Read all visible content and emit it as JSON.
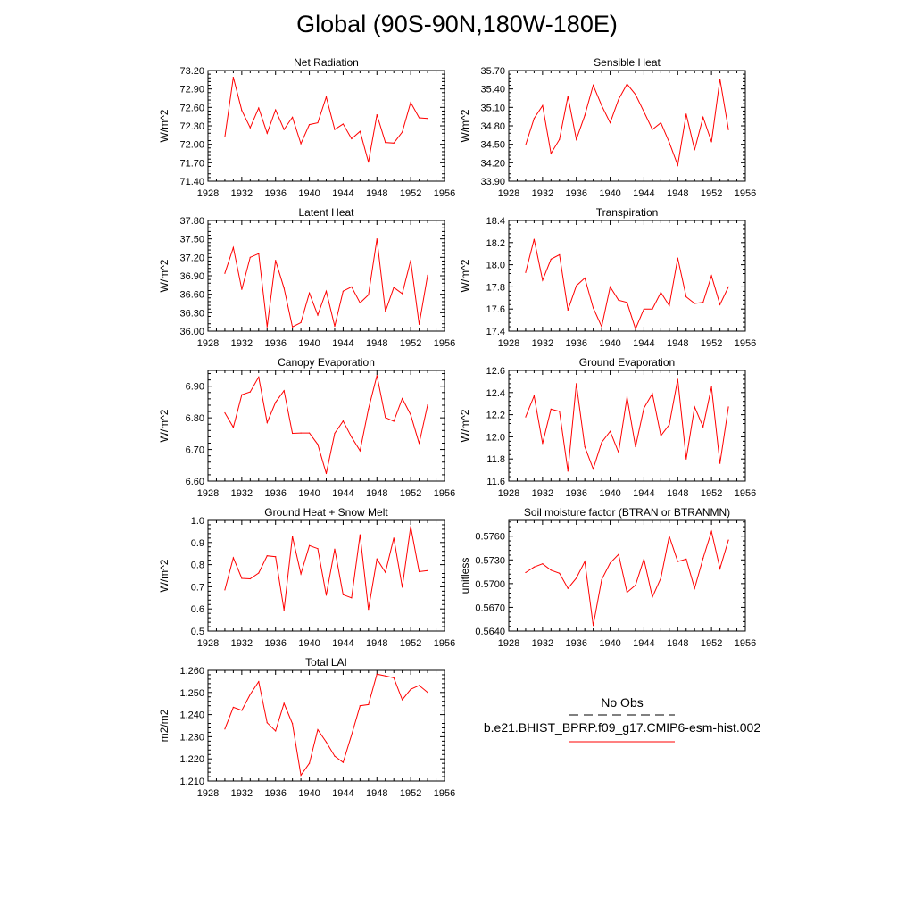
{
  "page": {
    "title": "Global (90S-90N,180W-180E)"
  },
  "colors": {
    "series": "#ff0000",
    "axis": "#000000",
    "obs_dash": "#000000"
  },
  "legend": {
    "obs_label": "No Obs",
    "model_label": "b.e21.BHIST_BPRP.f09_g17.CMIP6-esm-hist.002"
  },
  "chart_data": [
    {
      "type": "line",
      "title": "Net Radiation",
      "ylabel": "W/m^2",
      "xlim": [
        1928,
        1956
      ],
      "xticks": [
        1928,
        1932,
        1936,
        1940,
        1944,
        1948,
        1952,
        1956
      ],
      "ylim": [
        71.4,
        73.2
      ],
      "yticks": [
        "71.40",
        "71.70",
        "72.00",
        "72.30",
        "72.60",
        "72.90",
        "73.20"
      ],
      "x": [
        1930,
        1931,
        1932,
        1933,
        1934,
        1935,
        1936,
        1937,
        1938,
        1939,
        1940,
        1941,
        1942,
        1943,
        1944,
        1945,
        1946,
        1947,
        1948,
        1949,
        1950,
        1951,
        1952,
        1953,
        1954
      ],
      "series": [
        {
          "values": [
            72.12,
            73.09,
            72.55,
            72.27,
            72.59,
            72.18,
            72.56,
            72.24,
            72.44,
            72.01,
            72.32,
            72.35,
            72.77,
            72.24,
            72.33,
            72.09,
            72.21,
            71.71,
            72.48,
            72.03,
            72.02,
            72.2,
            72.68,
            72.43,
            72.42
          ]
        }
      ]
    },
    {
      "type": "line",
      "title": "Sensible Heat",
      "ylabel": "W/m^2",
      "xlim": [
        1928,
        1956
      ],
      "xticks": [
        1928,
        1932,
        1936,
        1940,
        1944,
        1948,
        1952,
        1956
      ],
      "ylim": [
        33.9,
        35.7
      ],
      "yticks": [
        "33.90",
        "34.20",
        "34.50",
        "34.80",
        "35.10",
        "35.40",
        "35.70"
      ],
      "x": [
        1930,
        1931,
        1932,
        1933,
        1934,
        1935,
        1936,
        1937,
        1938,
        1939,
        1940,
        1941,
        1942,
        1943,
        1944,
        1945,
        1946,
        1947,
        1948,
        1949,
        1950,
        1951,
        1952,
        1953,
        1954
      ],
      "series": [
        {
          "values": [
            34.49,
            34.92,
            35.13,
            34.35,
            34.58,
            35.28,
            34.58,
            34.97,
            35.46,
            35.13,
            34.85,
            35.23,
            35.48,
            35.31,
            35.03,
            34.74,
            34.85,
            34.53,
            34.16,
            34.99,
            34.41,
            34.94,
            34.54,
            35.56,
            34.74
          ]
        }
      ]
    },
    {
      "type": "line",
      "title": "Latent Heat",
      "ylabel": "W/m^2",
      "xlim": [
        1928,
        1956
      ],
      "xticks": [
        1928,
        1932,
        1936,
        1940,
        1944,
        1948,
        1952,
        1956
      ],
      "ylim": [
        36.0,
        37.8
      ],
      "yticks": [
        "36.00",
        "36.30",
        "36.60",
        "36.90",
        "37.20",
        "37.50",
        "37.80"
      ],
      "x": [
        1930,
        1931,
        1932,
        1933,
        1934,
        1935,
        1936,
        1937,
        1938,
        1939,
        1940,
        1941,
        1942,
        1943,
        1944,
        1945,
        1946,
        1947,
        1948,
        1949,
        1950,
        1951,
        1952,
        1953,
        1954
      ],
      "series": [
        {
          "values": [
            36.94,
            37.36,
            36.68,
            37.2,
            37.26,
            36.07,
            37.15,
            36.7,
            36.07,
            36.14,
            36.62,
            36.26,
            36.65,
            36.08,
            36.65,
            36.72,
            36.46,
            36.59,
            37.5,
            36.32,
            36.71,
            36.61,
            37.15,
            36.11,
            36.91
          ]
        }
      ]
    },
    {
      "type": "line",
      "title": "Transpiration",
      "ylabel": "W/m^2",
      "xlim": [
        1928,
        1956
      ],
      "xticks": [
        1928,
        1932,
        1936,
        1940,
        1944,
        1948,
        1952,
        1956
      ],
      "ylim": [
        17.4,
        18.4
      ],
      "yticks": [
        "17.4",
        "17.6",
        "17.8",
        "18.0",
        "18.2",
        "18.4"
      ],
      "x": [
        1930,
        1931,
        1932,
        1933,
        1934,
        1935,
        1936,
        1937,
        1938,
        1939,
        1940,
        1941,
        1942,
        1943,
        1944,
        1945,
        1946,
        1947,
        1948,
        1949,
        1950,
        1951,
        1952,
        1953,
        1954
      ],
      "series": [
        {
          "values": [
            17.93,
            18.23,
            17.86,
            18.05,
            18.09,
            17.59,
            17.81,
            17.88,
            17.61,
            17.44,
            17.8,
            17.68,
            17.66,
            17.42,
            17.6,
            17.6,
            17.75,
            17.63,
            18.06,
            17.71,
            17.65,
            17.66,
            17.9,
            17.64,
            17.8
          ]
        }
      ]
    },
    {
      "type": "line",
      "title": "Canopy Evaporation",
      "ylabel": "W/m^2",
      "xlim": [
        1928,
        1956
      ],
      "xticks": [
        1928,
        1932,
        1936,
        1940,
        1944,
        1948,
        1952,
        1956
      ],
      "ylim": [
        6.6,
        6.95
      ],
      "yticks": [
        "6.60",
        "6.70",
        "6.80",
        "6.90"
      ],
      "x": [
        1930,
        1931,
        1932,
        1933,
        1934,
        1935,
        1936,
        1937,
        1938,
        1939,
        1940,
        1941,
        1942,
        1943,
        1944,
        1945,
        1946,
        1947,
        1948,
        1949,
        1950,
        1951,
        1952,
        1953,
        1954
      ],
      "series": [
        {
          "values": [
            6.816,
            6.77,
            6.873,
            6.882,
            6.929,
            6.785,
            6.849,
            6.886,
            6.751,
            6.752,
            6.752,
            6.716,
            6.624,
            6.751,
            6.79,
            6.739,
            6.696,
            6.828,
            6.934,
            6.801,
            6.789,
            6.861,
            6.81,
            6.719,
            6.841
          ]
        }
      ]
    },
    {
      "type": "line",
      "title": "Ground Evaporation",
      "ylabel": "W/m^2",
      "xlim": [
        1928,
        1956
      ],
      "xticks": [
        1928,
        1932,
        1936,
        1940,
        1944,
        1948,
        1952,
        1956
      ],
      "ylim": [
        11.6,
        12.6
      ],
      "yticks": [
        "11.6",
        "11.8",
        "12.0",
        "12.2",
        "12.4",
        "12.6"
      ],
      "x": [
        1930,
        1931,
        1932,
        1933,
        1934,
        1935,
        1936,
        1937,
        1938,
        1939,
        1940,
        1941,
        1942,
        1943,
        1944,
        1945,
        1946,
        1947,
        1948,
        1949,
        1950,
        1951,
        1952,
        1953,
        1954
      ],
      "series": [
        {
          "values": [
            12.18,
            12.37,
            11.94,
            12.25,
            12.23,
            11.69,
            12.48,
            11.91,
            11.71,
            11.95,
            12.05,
            11.86,
            12.36,
            11.91,
            12.26,
            12.39,
            12.01,
            12.11,
            12.52,
            11.8,
            12.27,
            12.09,
            12.45,
            11.76,
            12.27
          ]
        }
      ]
    },
    {
      "type": "line",
      "title": "Ground Heat + Snow Melt",
      "ylabel": "W/m^2",
      "xlim": [
        1928,
        1956
      ],
      "xticks": [
        1928,
        1932,
        1936,
        1940,
        1944,
        1948,
        1952,
        1956
      ],
      "ylim": [
        0.5,
        1.0
      ],
      "yticks": [
        "0.5",
        "0.6",
        "0.7",
        "0.8",
        "0.9",
        "1.0"
      ],
      "x": [
        1930,
        1931,
        1932,
        1933,
        1934,
        1935,
        1936,
        1937,
        1938,
        1939,
        1940,
        1941,
        1942,
        1943,
        1944,
        1945,
        1946,
        1947,
        1948,
        1949,
        1950,
        1951,
        1952,
        1953,
        1954
      ],
      "series": [
        {
          "values": [
            0.686,
            0.831,
            0.738,
            0.736,
            0.762,
            0.84,
            0.836,
            0.595,
            0.927,
            0.758,
            0.886,
            0.872,
            0.662,
            0.87,
            0.664,
            0.65,
            0.935,
            0.598,
            0.825,
            0.765,
            0.92,
            0.698,
            0.972,
            0.768,
            0.773
          ]
        }
      ]
    },
    {
      "type": "line",
      "title": "Soil moisture factor (BTRAN or BTRANMN)",
      "ylabel": "unitless",
      "xlim": [
        1928,
        1956
      ],
      "xticks": [
        1928,
        1932,
        1936,
        1940,
        1944,
        1948,
        1952,
        1956
      ],
      "ylim": [
        0.564,
        0.578
      ],
      "yticks": [
        "0.5640",
        "0.5670",
        "0.5700",
        "0.5730",
        "0.5760"
      ],
      "x": [
        1930,
        1931,
        1932,
        1933,
        1934,
        1935,
        1936,
        1937,
        1938,
        1939,
        1940,
        1941,
        1942,
        1943,
        1944,
        1945,
        1946,
        1947,
        1948,
        1949,
        1950,
        1951,
        1952,
        1953,
        1954
      ],
      "series": [
        {
          "values": [
            0.5714,
            0.5721,
            0.5725,
            0.5717,
            0.5713,
            0.5694,
            0.5707,
            0.5728,
            0.5647,
            0.5705,
            0.5726,
            0.5737,
            0.5689,
            0.5698,
            0.5731,
            0.5683,
            0.5707,
            0.576,
            0.5728,
            0.5731,
            0.5694,
            0.5732,
            0.5766,
            0.5719,
            0.5755
          ]
        }
      ]
    },
    {
      "type": "line",
      "title": "Total LAI",
      "ylabel": "m2/m2",
      "xlim": [
        1928,
        1956
      ],
      "xticks": [
        1928,
        1932,
        1936,
        1940,
        1944,
        1948,
        1952,
        1956
      ],
      "ylim": [
        1.21,
        1.26
      ],
      "yticks": [
        "1.210",
        "1.220",
        "1.230",
        "1.240",
        "1.250",
        "1.260"
      ],
      "x": [
        1930,
        1931,
        1932,
        1933,
        1934,
        1935,
        1936,
        1937,
        1938,
        1939,
        1940,
        1941,
        1942,
        1943,
        1944,
        1945,
        1946,
        1947,
        1948,
        1949,
        1950,
        1951,
        1952,
        1953,
        1954
      ],
      "series": [
        {
          "values": [
            1.2335,
            1.2433,
            1.2419,
            1.2491,
            1.2549,
            1.2363,
            1.2326,
            1.2451,
            1.2359,
            1.2126,
            1.218,
            1.2332,
            1.2276,
            1.2212,
            1.2184,
            1.2308,
            1.244,
            1.2445,
            1.2583,
            1.2575,
            1.2566,
            1.2467,
            1.2514,
            1.2532,
            1.25
          ]
        }
      ]
    }
  ]
}
